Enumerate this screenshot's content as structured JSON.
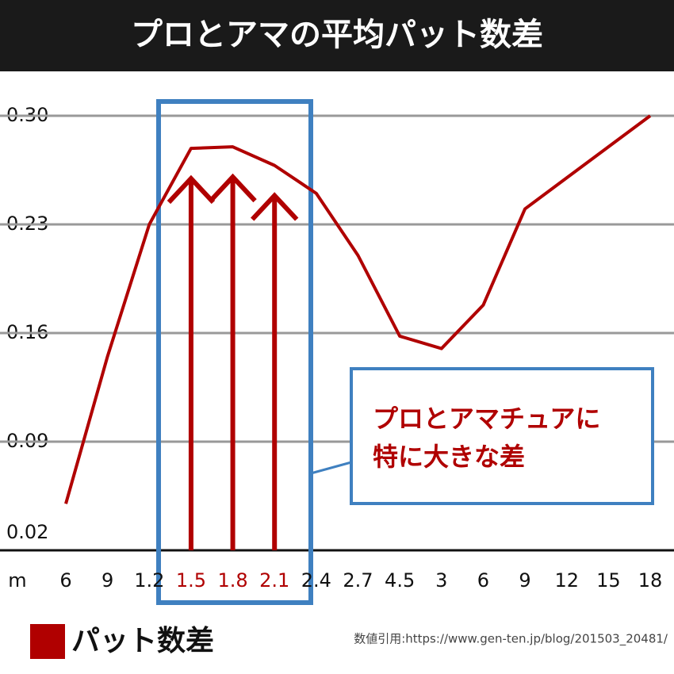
{
  "chart_data": {
    "type": "line",
    "title": "プロとアマの平均パット数差",
    "xlabel": "m",
    "categories": [
      "6",
      "9",
      "1.2",
      "1.5",
      "1.8",
      "2.1",
      "2.4",
      "2.7",
      "4.5",
      "3",
      "6",
      "9",
      "12",
      "15",
      "18"
    ],
    "series": [
      {
        "name": "パット数差",
        "color": "#b00000",
        "values": [
          0.05,
          0.145,
          0.23,
          0.279,
          0.28,
          0.268,
          0.25,
          0.21,
          0.158,
          0.15,
          0.178,
          0.24,
          0.26,
          0.28,
          0.3
        ]
      }
    ],
    "ylim": [
      0.02,
      0.3
    ],
    "yticks": [
      0.02,
      0.09,
      0.16,
      0.23,
      {
        "value": 0.3,
        "label": "0.30"
      }
    ],
    "grid": true,
    "annotation": [
      "プロとアマチュアに",
      "特に大きな差"
    ],
    "source": "数値引用:https://www.gen-ten.jp/blog/201503_20481/"
  }
}
